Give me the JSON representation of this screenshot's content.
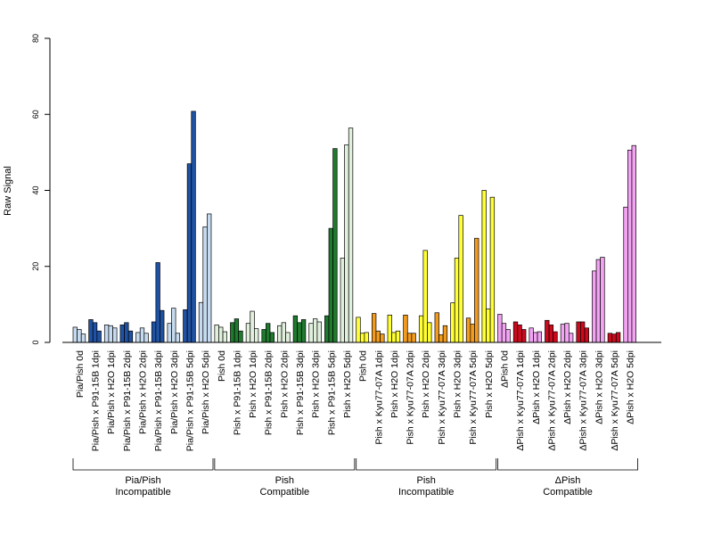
{
  "chart_data": {
    "type": "bar",
    "ylabel": "Raw Signal",
    "ylim": [
      0,
      80
    ],
    "yticks": [
      0,
      20,
      40,
      60,
      80
    ],
    "categories": [
      "Pia/Pish 0d",
      "Pia/Pish x P91-15B 1dpi",
      "Pia/Pish x H2O 1dpi",
      "Pia/Pish x P91-15B 2dpi",
      "Pia/Pish x H2O 2dpi",
      "Pia/Pish x P91-15B 3dpi",
      "Pia/Pish x H2O 3dpi",
      "Pia/Pish x P91-15B 5dpi",
      "Pia/Pish x H2O 5dpi",
      "Pish 0d",
      "Pish x P91-15B 1dpi",
      "Pish x H2O 1dpi",
      "Pish x P91-15B 2dpi",
      "Pish x H2O 2dpi",
      "Pish x P91-15B 3dpi",
      "Pish x H2O 3dpi",
      "Pish x P91-15B 5dpi",
      "Pish x H2O 5dpi",
      "Pish 0d",
      "Pish x Kyu77-07A 1dpi",
      "Pish x H2O 1dpi",
      "Pish x Kyu77-07A 2dpi",
      "Pish x H2O 2dpi",
      "Pish x Kyu77-07A 3dpi",
      "Pish x H2O 3dpi",
      "Pish x Kyu77-07A 5dpi",
      "Pish x H2O 5dpi",
      "ΔPish 0d",
      "ΔPish x Kyu77-07A 1dpi",
      "ΔPish x H2O 1dpi",
      "ΔPish x Kyu77-07A 2dpi",
      "ΔPish x H2O 2dpi",
      "ΔPish x Kyu77-07A 3dpi",
      "ΔPish x H2O 3dpi",
      "ΔPish x Kyu77-07A 5dpi",
      "ΔPish x H2O 5dpi"
    ],
    "colors": [
      "#c6dbef",
      "#2052a3",
      "#c6dbef",
      "#2052a3",
      "#c6dbef",
      "#2052a3",
      "#c6dbef",
      "#2052a3",
      "#c6dbef",
      "#e0f0dc",
      "#1f7a2e",
      "#e0f0dc",
      "#1f7a2e",
      "#e0f0dc",
      "#1f7a2e",
      "#e0f0dc",
      "#1f7a2e",
      "#e0f0dc",
      "#ffff33",
      "#f29b1e",
      "#ffff33",
      "#f29b1e",
      "#ffff33",
      "#f29b1e",
      "#ffff33",
      "#f29b1e",
      "#ffff33",
      "#f2a3f2",
      "#cc0a1e",
      "#f2a3f2",
      "#cc0a1e",
      "#f2a3f2",
      "#cc0a1e",
      "#f2a3f2",
      "#cc0a1e",
      "#f2a3f2"
    ],
    "values": [
      [
        4.0,
        3.4,
        2.2
      ],
      [
        6.0,
        5.2,
        3.0
      ],
      [
        4.6,
        4.4,
        3.8
      ],
      [
        4.6,
        5.2,
        3.0
      ],
      [
        2.6,
        3.8,
        2.4
      ],
      [
        5.4,
        21.0,
        8.4
      ],
      [
        5.0,
        9.0,
        2.4
      ],
      [
        8.6,
        47.0,
        60.8
      ],
      [
        10.5,
        30.4,
        33.8
      ],
      [
        4.6,
        4.0,
        2.8
      ],
      [
        5.2,
        6.2,
        3.0
      ],
      [
        5.0,
        8.2,
        3.6
      ],
      [
        3.4,
        5.0,
        2.6
      ],
      [
        4.4,
        5.2,
        2.6
      ],
      [
        7.0,
        5.2,
        6.0
      ],
      [
        5.0,
        6.2,
        5.4
      ],
      [
        7.0,
        30.0,
        51.0
      ],
      [
        22.2,
        52.0,
        56.4
      ],
      [
        6.6,
        2.4,
        2.6
      ],
      [
        7.6,
        3.0,
        2.2
      ],
      [
        7.2,
        2.6,
        3.0
      ],
      [
        7.2,
        2.4,
        2.4
      ],
      [
        7.0,
        24.2,
        5.2
      ],
      [
        7.8,
        2.0,
        4.4
      ],
      [
        10.4,
        22.2,
        33.4
      ],
      [
        6.4,
        4.8,
        27.4
      ],
      [
        40.0,
        8.8,
        38.2
      ],
      [
        7.4,
        5.0,
        3.4
      ],
      [
        5.4,
        4.6,
        3.4
      ],
      [
        3.8,
        2.6,
        2.8
      ],
      [
        5.8,
        4.6,
        2.8
      ],
      [
        4.8,
        5.0,
        2.4
      ],
      [
        5.4,
        5.4,
        3.8
      ],
      [
        18.8,
        21.8,
        22.4
      ],
      [
        2.4,
        2.2,
        2.6
      ],
      [
        35.6,
        50.6,
        51.8
      ]
    ],
    "groups": [
      {
        "line1": "Pia/Pish",
        "line2": "Incompatible",
        "from": 0,
        "to": 8
      },
      {
        "line1": "Pish",
        "line2": "Compatible",
        "from": 9,
        "to": 17
      },
      {
        "line1": "Pish",
        "line2": "Incompatible",
        "from": 18,
        "to": 26
      },
      {
        "line1": "ΔPish",
        "line2": "Compatible",
        "from": 27,
        "to": 35
      }
    ]
  }
}
